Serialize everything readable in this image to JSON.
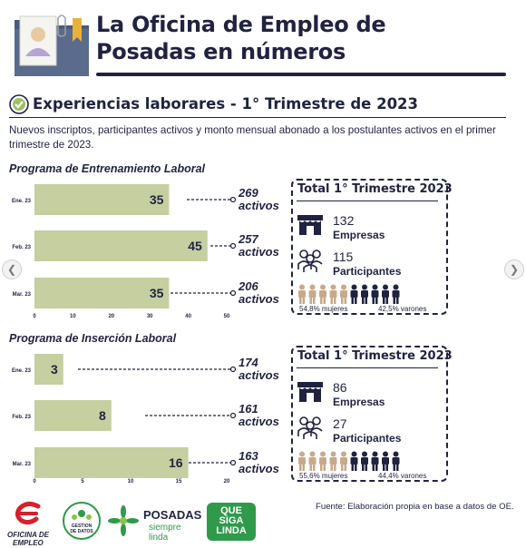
{
  "header": {
    "title_line1": "La Oficina de Empleo de",
    "title_line2": "Posadas en números"
  },
  "section": {
    "title": "Experiencias laborares - 1° Trimestre de 2023",
    "intro": "Nuevos inscriptos, participantes activos y monto mensual abonado a los postulantes activos en el primer trimestre de 2023."
  },
  "chart_data": [
    {
      "type": "bar",
      "orientation": "horizontal",
      "title": "Programa de Entrenamiento Laboral",
      "categories": [
        "Ene. 23",
        "Feb. 23",
        "Mar. 23"
      ],
      "values": [
        35,
        45,
        35
      ],
      "annotations": [
        {
          "value": "269",
          "label": "activos"
        },
        {
          "value": "257",
          "label": "activos"
        },
        {
          "value": "206",
          "label": "activos"
        }
      ],
      "xlim": [
        0,
        50
      ],
      "xticks": [
        0,
        10,
        20,
        30,
        40,
        50
      ],
      "color": "#c5cfa0"
    },
    {
      "type": "bar",
      "orientation": "horizontal",
      "title": "Programa de Inserción Laboral",
      "categories": [
        "Ene. 23",
        "Feb. 23",
        "Mar. 23"
      ],
      "values": [
        3,
        8,
        16
      ],
      "annotations": [
        {
          "value": "174",
          "label": "activos"
        },
        {
          "value": "161",
          "label": "activos"
        },
        {
          "value": "163",
          "label": "activos"
        }
      ],
      "xlim": [
        0,
        20
      ],
      "xticks": [
        0,
        5,
        10,
        15,
        20
      ],
      "color": "#c5cfa0"
    }
  ],
  "totals": [
    {
      "title": "Total 1° Trimestre 2023",
      "empresas": "132",
      "empresas_label": "Empresas",
      "participantes": "115",
      "participantes_label": "Participantes",
      "mujeres": "54,8% mujeres",
      "varones": "42,5% varones"
    },
    {
      "title": "Total 1° Trimestre 2023",
      "empresas": "86",
      "empresas_label": "Empresas",
      "participantes": "27",
      "participantes_label": "Participantes",
      "mujeres": "55,6% mujeres",
      "varones": "44,4% varones"
    }
  ],
  "colors": {
    "navy": "#1f2340",
    "bar": "#c5cfa0",
    "women": "#c8a98a",
    "men": "#1f2340",
    "brand_red": "#d6202c",
    "brand_green": "#2e9a4a"
  },
  "footer": {
    "fuente": "Fuente: Elaboración propia en base a datos de OE.",
    "logo1_line1": "OFICINA DE",
    "logo1_line2": "EMPLEO",
    "logo2_line1": "GESTION",
    "logo2_line2": "DE DATOS",
    "logo3_line1": "POSADAS",
    "logo3_line2": "siempre linda",
    "logo4_line1": "QUE",
    "logo4_line2": "SIGA",
    "logo4_line3": "LINDA"
  },
  "nav": {
    "prev_icon": "chevron-left-icon",
    "next_icon": "chevron-right-icon"
  }
}
